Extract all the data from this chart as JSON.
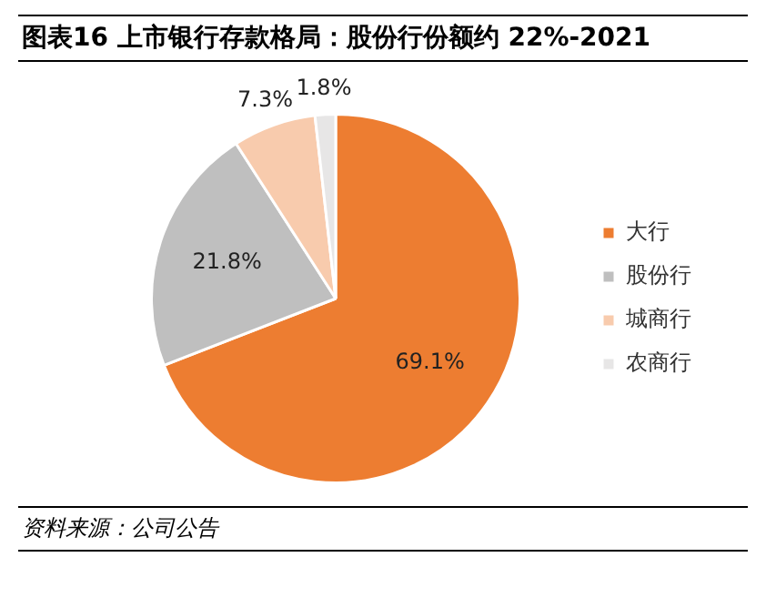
{
  "chart_data": {
    "type": "pie",
    "title": "图表16    上市银行存款格局：股份行份额约 22%-2021",
    "categories": [
      "大行",
      "股份行",
      "城商行",
      "农商行"
    ],
    "values": [
      69.1,
      21.8,
      7.3,
      1.8
    ],
    "colors": [
      "#ed7d31",
      "#bfbfbf",
      "#f8cbad",
      "#e7e6e6"
    ],
    "value_labels": [
      "69.1%",
      "21.8%",
      "7.3%",
      "1.8%"
    ],
    "legend": "right",
    "annotations": [
      "资料来源：公司公告"
    ]
  }
}
